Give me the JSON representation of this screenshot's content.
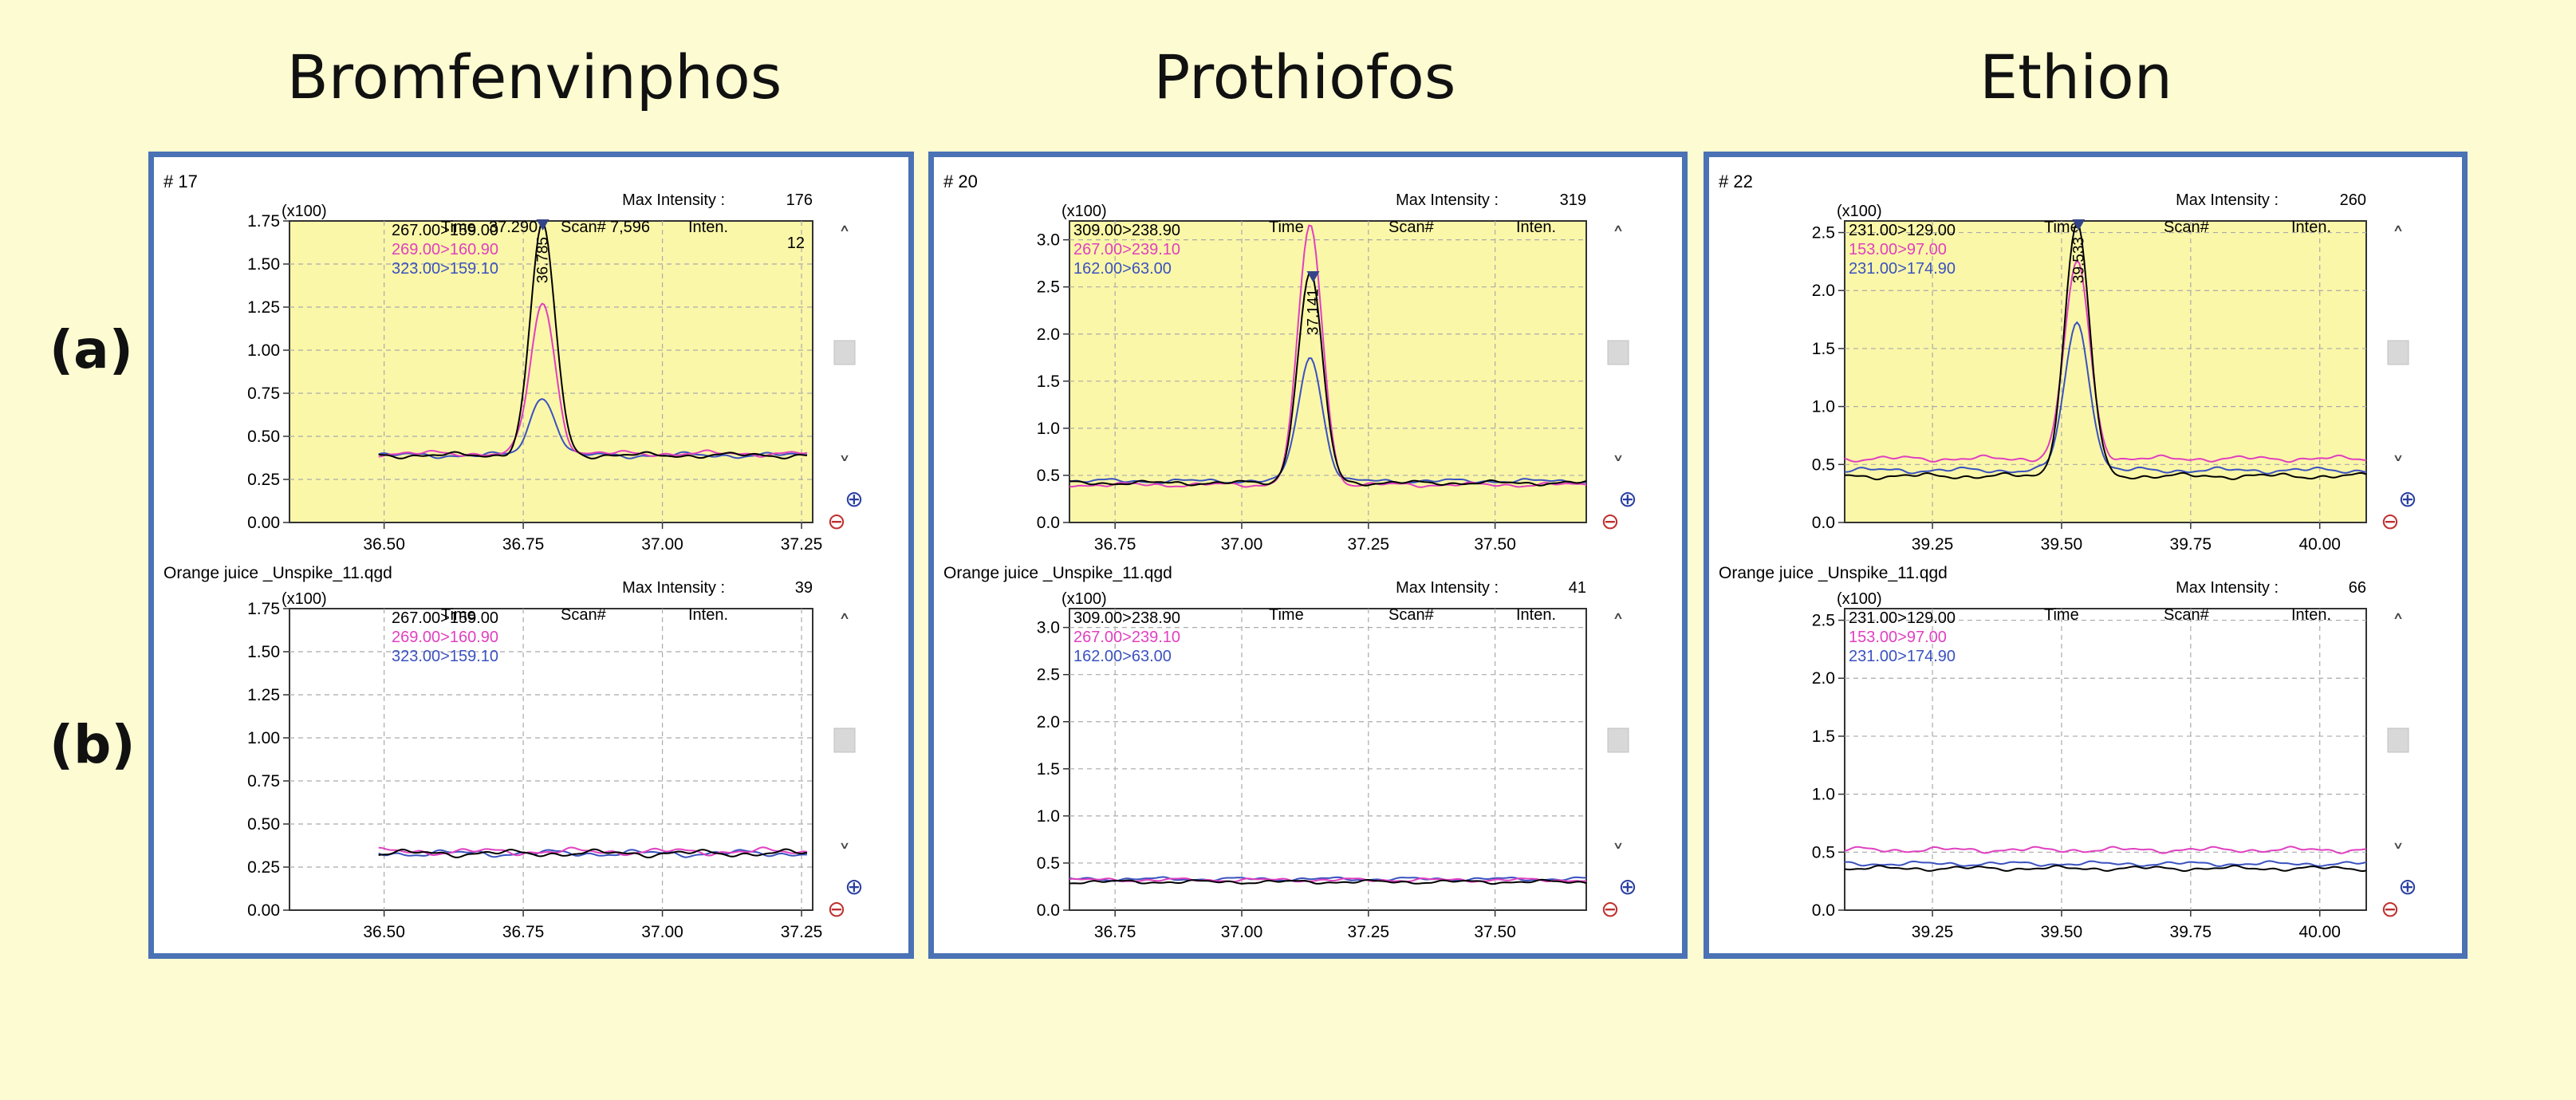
{
  "column_titles": [
    "Bromfenvinphos",
    "Prothiofos",
    "Ethion"
  ],
  "row_labels": [
    "(a)",
    "(b)"
  ],
  "ui": {
    "scroll_up": "˄",
    "scroll_down": "˅",
    "zoom_in": "⊕",
    "zoom_out": "⊖"
  },
  "colors": {
    "frame": "#4a72b5",
    "black": "#000000",
    "magenta": "#e040c0",
    "blue": "#3a52c0",
    "plot_yellow": "#fbf7a8"
  },
  "chart_data": [
    {
      "type": "line",
      "compound": "Bromfenvinphos",
      "row": "(a)",
      "shaded": true,
      "header": "# 17",
      "multiplier": "(x100)",
      "max_intensity_label": "Max Intensity :",
      "max_intensity": "176",
      "time_label": "Time",
      "time_value": "37.290",
      "scan_label": "Scan#",
      "scan_value": "7,596",
      "inten_label": "Inten.",
      "inten_value": "12",
      "peak_label": "36.785",
      "peak_x": 36.785,
      "xlim": [
        36.33,
        37.27
      ],
      "xticks": [
        "36.50",
        "36.75",
        "37.00",
        "37.25"
      ],
      "ylim": [
        0,
        1.75
      ],
      "yticks": [
        "0.00",
        "0.25",
        "0.50",
        "0.75",
        "1.00",
        "1.25",
        "1.50",
        "1.75"
      ],
      "file_label": "Orange juice _Unspike_11.qgd",
      "series": [
        {
          "name": "267.00>159.00",
          "color": "#000000",
          "baseline": 0.39,
          "peak": 1.73,
          "center": 36.785,
          "width": 0.022,
          "noise": 0.02,
          "start": 36.49,
          "end": 37.26
        },
        {
          "name": "269.00>160.90",
          "color": "#e040c0",
          "baseline": 0.4,
          "peak": 1.27,
          "center": 36.785,
          "width": 0.022,
          "noise": 0.02,
          "start": 36.49,
          "end": 37.26
        },
        {
          "name": "323.00>159.10",
          "color": "#3a52c0",
          "baseline": 0.39,
          "peak": 0.73,
          "center": 36.785,
          "width": 0.022,
          "noise": 0.02,
          "start": 36.49,
          "end": 37.26
        }
      ]
    },
    {
      "type": "line",
      "compound": "Prothiofos",
      "row": "(a)",
      "shaded": true,
      "header": "# 20",
      "multiplier": "(x100)",
      "max_intensity_label": "Max Intensity :",
      "max_intensity": "319",
      "time_label": "Time",
      "time_value": "",
      "scan_label": "Scan#",
      "scan_value": "",
      "inten_label": "Inten.",
      "inten_value": "",
      "peak_label": "37.141",
      "peak_x": 37.141,
      "xlim": [
        36.66,
        37.68
      ],
      "xticks": [
        "36.75",
        "37.00",
        "37.25",
        "37.50"
      ],
      "ylim": [
        0,
        3.2
      ],
      "yticks": [
        "0.0",
        "0.5",
        "1.0",
        "1.5",
        "2.0",
        "2.5",
        "3.0"
      ],
      "file_label": "Orange juice _Unspike_11.qgd",
      "series": [
        {
          "name": "309.00>238.90",
          "color": "#000000",
          "baseline": 0.42,
          "peak": 2.65,
          "center": 37.135,
          "width": 0.024,
          "noise": 0.03,
          "start": 36.66,
          "end": 37.68
        },
        {
          "name": "267.00>239.10",
          "color": "#e040c0",
          "baseline": 0.4,
          "peak": 3.15,
          "center": 37.135,
          "width": 0.024,
          "noise": 0.03,
          "start": 36.66,
          "end": 37.68
        },
        {
          "name": "162.00>63.00",
          "color": "#3a52c0",
          "baseline": 0.44,
          "peak": 1.75,
          "center": 37.135,
          "width": 0.024,
          "noise": 0.03,
          "start": 36.66,
          "end": 37.68
        }
      ]
    },
    {
      "type": "line",
      "compound": "Ethion",
      "row": "(a)",
      "shaded": true,
      "header": "# 22",
      "multiplier": "(x100)",
      "max_intensity_label": "Max Intensity :",
      "max_intensity": "260",
      "time_label": "Time",
      "time_value": "",
      "scan_label": "Scan#",
      "scan_value": "",
      "inten_label": "Inten.",
      "inten_value": "",
      "peak_label": "39.533",
      "peak_x": 39.533,
      "xlim": [
        39.08,
        40.09
      ],
      "xticks": [
        "39.25",
        "39.50",
        "39.75",
        "40.00"
      ],
      "ylim": [
        0,
        2.6
      ],
      "yticks": [
        "0.0",
        "0.5",
        "1.0",
        "1.5",
        "2.0",
        "2.5"
      ],
      "file_label": "Orange juice _Unspike_11.qgd",
      "series": [
        {
          "name": "231.00>129.00",
          "color": "#000000",
          "baseline": 0.4,
          "peak": 2.58,
          "center": 39.53,
          "width": 0.024,
          "noise": 0.03,
          "start": 39.08,
          "end": 40.09
        },
        {
          "name": "153.00>97.00",
          "color": "#e040c0",
          "baseline": 0.55,
          "peak": 2.25,
          "center": 39.53,
          "width": 0.024,
          "noise": 0.03,
          "start": 39.08,
          "end": 40.09
        },
        {
          "name": "231.00>174.90",
          "color": "#3a52c0",
          "baseline": 0.45,
          "peak": 1.72,
          "center": 39.53,
          "width": 0.024,
          "noise": 0.03,
          "start": 39.08,
          "end": 40.09
        }
      ]
    },
    {
      "type": "line",
      "compound": "Bromfenvinphos",
      "row": "(b)",
      "shaded": false,
      "header": "",
      "multiplier": "(x100)",
      "max_intensity_label": "Max Intensity :",
      "max_intensity": "39",
      "time_label": "Time",
      "time_value": "",
      "scan_label": "Scan#",
      "scan_value": "",
      "inten_label": "Inten.",
      "inten_value": "",
      "peak_label": "",
      "peak_x": null,
      "xlim": [
        36.33,
        37.27
      ],
      "xticks": [
        "36.50",
        "36.75",
        "37.00",
        "37.25"
      ],
      "ylim": [
        0,
        1.75
      ],
      "yticks": [
        "0.00",
        "0.25",
        "0.50",
        "0.75",
        "1.00",
        "1.25",
        "1.50",
        "1.75"
      ],
      "file_label": "",
      "series": [
        {
          "name": "267.00>159.00",
          "color": "#000000",
          "baseline": 0.33,
          "peak": 0,
          "center": 0,
          "width": 0.02,
          "noise": 0.025,
          "start": 36.49,
          "end": 37.26
        },
        {
          "name": "269.00>160.90",
          "color": "#e040c0",
          "baseline": 0.34,
          "peak": 0,
          "center": 0,
          "width": 0.02,
          "noise": 0.025,
          "start": 36.49,
          "end": 37.26
        },
        {
          "name": "323.00>159.10",
          "color": "#3a52c0",
          "baseline": 0.33,
          "peak": 0,
          "center": 0,
          "width": 0.02,
          "noise": 0.025,
          "start": 36.49,
          "end": 37.26
        }
      ]
    },
    {
      "type": "line",
      "compound": "Prothiofos",
      "row": "(b)",
      "shaded": false,
      "header": "",
      "multiplier": "(x100)",
      "max_intensity_label": "Max Intensity :",
      "max_intensity": "41",
      "time_label": "Time",
      "time_value": "",
      "scan_label": "Scan#",
      "scan_value": "",
      "inten_label": "Inten.",
      "inten_value": "",
      "peak_label": "",
      "peak_x": null,
      "xlim": [
        36.66,
        37.68
      ],
      "xticks": [
        "36.75",
        "37.00",
        "37.25",
        "37.50"
      ],
      "ylim": [
        0,
        3.2
      ],
      "yticks": [
        "0.0",
        "0.5",
        "1.0",
        "1.5",
        "2.0",
        "2.5",
        "3.0"
      ],
      "file_label": "Orange juice _Unspike_11.qgd",
      "series": [
        {
          "name": "309.00>238.90",
          "color": "#000000",
          "baseline": 0.3,
          "peak": 0,
          "center": 0,
          "width": 0.02,
          "noise": 0.025,
          "start": 36.66,
          "end": 37.68
        },
        {
          "name": "267.00>239.10",
          "color": "#e040c0",
          "baseline": 0.32,
          "peak": 0,
          "center": 0,
          "width": 0.02,
          "noise": 0.025,
          "start": 36.66,
          "end": 37.68
        },
        {
          "name": "162.00>63.00",
          "color": "#3a52c0",
          "baseline": 0.33,
          "peak": 0,
          "center": 0,
          "width": 0.02,
          "noise": 0.025,
          "start": 36.66,
          "end": 37.68
        }
      ]
    },
    {
      "type": "line",
      "compound": "Ethion",
      "row": "(b)",
      "shaded": false,
      "header": "",
      "multiplier": "(x100)",
      "max_intensity_label": "Max Intensity :",
      "max_intensity": "66",
      "time_label": "Time",
      "time_value": "",
      "scan_label": "Scan#",
      "scan_value": "",
      "inten_label": "Inten.",
      "inten_value": "",
      "peak_label": "",
      "peak_x": null,
      "xlim": [
        39.08,
        40.09
      ],
      "xticks": [
        "39.25",
        "39.50",
        "39.75",
        "40.00"
      ],
      "ylim": [
        0,
        2.6
      ],
      "yticks": [
        "0.0",
        "0.5",
        "1.0",
        "1.5",
        "2.0",
        "2.5"
      ],
      "file_label": "Orange juice _Unspike_11.qgd",
      "series": [
        {
          "name": "231.00>129.00",
          "color": "#000000",
          "baseline": 0.36,
          "peak": 0,
          "center": 0,
          "width": 0.02,
          "noise": 0.025,
          "start": 39.08,
          "end": 40.09
        },
        {
          "name": "153.00>97.00",
          "color": "#e040c0",
          "baseline": 0.52,
          "peak": 0,
          "center": 0,
          "width": 0.02,
          "noise": 0.03,
          "start": 39.08,
          "end": 40.09
        },
        {
          "name": "231.00>174.90",
          "color": "#3a52c0",
          "baseline": 0.4,
          "peak": 0,
          "center": 0,
          "width": 0.02,
          "noise": 0.025,
          "start": 39.08,
          "end": 40.09
        }
      ]
    }
  ]
}
